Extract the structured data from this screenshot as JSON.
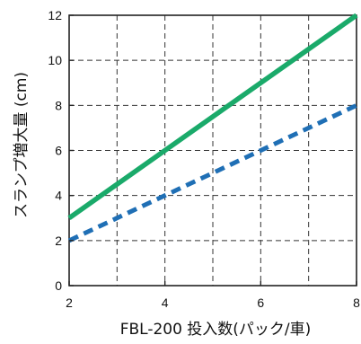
{
  "chart_data": {
    "type": "line",
    "xlabel": "FBL-200 投入数(パック/車)",
    "ylabel": "スランプ増大量 (cm)",
    "xlim": [
      2,
      8
    ],
    "ylim": [
      0,
      12
    ],
    "x_ticks": [
      2,
      4,
      6,
      8
    ],
    "y_ticks": [
      0,
      2,
      4,
      6,
      8,
      10,
      12
    ],
    "grid": "dashed",
    "series": [
      {
        "x": [
          2,
          8
        ],
        "values": [
          3,
          12
        ],
        "color": "#1aaa6a",
        "style": "solid"
      },
      {
        "x": [
          2,
          8
        ],
        "values": [
          2,
          8
        ],
        "color": "#1f6fb5",
        "style": "dashed"
      }
    ]
  }
}
